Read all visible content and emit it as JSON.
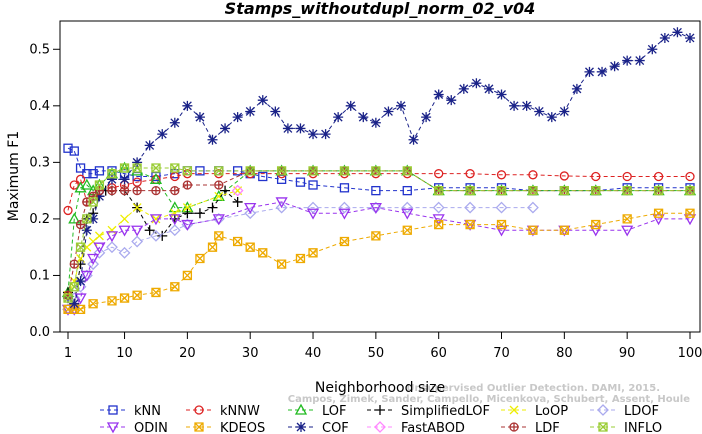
{
  "chart_data": {
    "type": "line",
    "title": "Stamps_withoutdupl_norm_02_v04",
    "xlabel": "Neighborhood size",
    "ylabel": "Maximum F1",
    "xlim": [
      1,
      100
    ],
    "ylim": [
      0,
      0.55
    ],
    "xticks": [
      1,
      10,
      20,
      30,
      40,
      50,
      60,
      70,
      80,
      90,
      100
    ],
    "yticks": [
      0.0,
      0.1,
      0.2,
      0.3,
      0.4,
      0.5
    ],
    "ytick_labels": [
      "0.0",
      "0.1",
      "0.2",
      "0.3",
      "0.4",
      "0.5"
    ],
    "grid": false,
    "legend_position": "bottom",
    "watermark_lines": [
      "Unsupervised Outlier Detection. DAMI, 2015.",
      "Campos, Zimek, Sander, Campello, Micenkova, Schubert, Assent, Houle"
    ],
    "series": [
      {
        "name": "kNN",
        "color": "#2233cc",
        "marker": "square",
        "x": [
          1,
          2,
          3,
          4,
          5,
          6,
          8,
          10,
          12,
          15,
          18,
          20,
          22,
          25,
          28,
          30,
          32,
          35,
          38,
          40,
          45,
          50,
          55,
          60,
          65,
          70,
          75,
          80,
          85,
          90,
          95,
          100
        ],
        "y": [
          0.325,
          0.32,
          0.29,
          0.28,
          0.28,
          0.285,
          0.285,
          0.28,
          0.275,
          0.275,
          0.28,
          0.285,
          0.285,
          0.285,
          0.285,
          0.28,
          0.275,
          0.27,
          0.265,
          0.26,
          0.255,
          0.25,
          0.25,
          0.255,
          0.255,
          0.255,
          0.25,
          0.25,
          0.25,
          0.255,
          0.255,
          0.255
        ]
      },
      {
        "name": "kNNW",
        "color": "#dd2222",
        "marker": "circle",
        "x": [
          1,
          2,
          3,
          4,
          5,
          6,
          8,
          10,
          12,
          15,
          18,
          20,
          25,
          30,
          35,
          40,
          45,
          50,
          55,
          60,
          65,
          70,
          75,
          80,
          85,
          90,
          95,
          100
        ],
        "y": [
          0.215,
          0.26,
          0.27,
          0.23,
          0.24,
          0.25,
          0.255,
          0.26,
          0.265,
          0.27,
          0.275,
          0.28,
          0.28,
          0.28,
          0.28,
          0.28,
          0.28,
          0.28,
          0.28,
          0.28,
          0.28,
          0.278,
          0.278,
          0.276,
          0.275,
          0.275,
          0.275,
          0.275
        ]
      },
      {
        "name": "LOF",
        "color": "#22bb22",
        "marker": "triangle-up",
        "x": [
          1,
          2,
          3,
          4,
          5,
          6,
          8,
          10,
          12,
          15,
          18,
          20,
          25,
          30,
          35,
          40,
          45,
          50,
          55,
          60,
          65,
          70,
          75,
          80,
          85,
          90,
          95,
          100
        ],
        "y": [
          0.07,
          0.2,
          0.255,
          0.26,
          0.25,
          0.26,
          0.28,
          0.29,
          0.285,
          0.27,
          0.22,
          0.22,
          0.24,
          0.285,
          0.285,
          0.285,
          0.285,
          0.285,
          0.285,
          0.25,
          0.25,
          0.25,
          0.25,
          0.25,
          0.25,
          0.25,
          0.25,
          0.25
        ]
      },
      {
        "name": "SimplifiedLOF",
        "color": "#000000",
        "marker": "plus",
        "x": [
          1,
          2,
          3,
          4,
          5,
          6,
          7,
          8,
          10,
          12,
          14,
          16,
          18,
          20,
          22,
          24,
          26,
          28
        ],
        "y": [
          0.07,
          0.05,
          0.12,
          0.2,
          0.21,
          0.24,
          0.25,
          0.25,
          0.25,
          0.22,
          0.18,
          0.17,
          0.2,
          0.21,
          0.21,
          0.22,
          0.25,
          0.23
        ]
      },
      {
        "name": "LoOP",
        "color": "#eeee00",
        "marker": "x",
        "x": [
          1,
          2,
          3,
          4,
          5,
          6,
          8,
          10,
          12,
          15,
          18,
          20,
          25,
          28
        ],
        "y": [
          0.065,
          0.09,
          0.13,
          0.15,
          0.16,
          0.17,
          0.18,
          0.2,
          0.22,
          0.2,
          0.21,
          0.22,
          0.24,
          0.25
        ]
      },
      {
        "name": "LDOF",
        "color": "#aaaaee",
        "marker": "diamond",
        "x": [
          1,
          2,
          3,
          4,
          5,
          6,
          8,
          10,
          12,
          15,
          18,
          20,
          25,
          30,
          35,
          40,
          45,
          50,
          55,
          60,
          65,
          70,
          75
        ],
        "y": [
          0.04,
          0.06,
          0.08,
          0.1,
          0.12,
          0.14,
          0.15,
          0.14,
          0.16,
          0.17,
          0.18,
          0.19,
          0.2,
          0.21,
          0.22,
          0.22,
          0.22,
          0.22,
          0.22,
          0.22,
          0.22,
          0.22,
          0.22
        ]
      },
      {
        "name": "ODIN",
        "color": "#9933ee",
        "marker": "triangle-down",
        "x": [
          1,
          2,
          3,
          4,
          5,
          6,
          8,
          10,
          12,
          15,
          18,
          20,
          25,
          30,
          35,
          40,
          45,
          50,
          55,
          60,
          65,
          70,
          75,
          80,
          85,
          90,
          95,
          100
        ],
        "y": [
          0.04,
          0.04,
          0.06,
          0.1,
          0.13,
          0.15,
          0.17,
          0.18,
          0.18,
          0.2,
          0.2,
          0.19,
          0.2,
          0.22,
          0.23,
          0.21,
          0.21,
          0.22,
          0.21,
          0.2,
          0.19,
          0.18,
          0.18,
          0.18,
          0.18,
          0.18,
          0.2,
          0.2
        ]
      },
      {
        "name": "KDEOS",
        "color": "#eeaa00",
        "marker": "square-x",
        "x": [
          1,
          2,
          3,
          5,
          8,
          10,
          12,
          15,
          18,
          20,
          22,
          24,
          25,
          28,
          30,
          32,
          35,
          38,
          40,
          45,
          50,
          55,
          60,
          65,
          70,
          75,
          80,
          85,
          90,
          95,
          100
        ],
        "y": [
          0.04,
          0.04,
          0.04,
          0.05,
          0.055,
          0.06,
          0.065,
          0.07,
          0.08,
          0.1,
          0.13,
          0.15,
          0.17,
          0.16,
          0.15,
          0.14,
          0.12,
          0.13,
          0.14,
          0.16,
          0.17,
          0.18,
          0.19,
          0.19,
          0.19,
          0.18,
          0.18,
          0.19,
          0.2,
          0.21,
          0.21
        ]
      },
      {
        "name": "COF",
        "color": "#1a2288",
        "marker": "star",
        "x": [
          1,
          2,
          3,
          4,
          5,
          6,
          8,
          10,
          12,
          14,
          16,
          18,
          20,
          22,
          24,
          26,
          28,
          30,
          32,
          34,
          36,
          38,
          40,
          42,
          44,
          46,
          48,
          50,
          52,
          54,
          56,
          58,
          60,
          62,
          64,
          66,
          68,
          70,
          72,
          74,
          76,
          78,
          80,
          82,
          84,
          86,
          88,
          90,
          92,
          94,
          96,
          98,
          100
        ],
        "y": [
          0.06,
          0.05,
          0.09,
          0.18,
          0.2,
          0.24,
          0.27,
          0.27,
          0.3,
          0.33,
          0.35,
          0.37,
          0.4,
          0.38,
          0.34,
          0.36,
          0.38,
          0.39,
          0.41,
          0.39,
          0.36,
          0.36,
          0.35,
          0.35,
          0.38,
          0.4,
          0.38,
          0.37,
          0.39,
          0.4,
          0.34,
          0.38,
          0.42,
          0.41,
          0.43,
          0.44,
          0.43,
          0.42,
          0.4,
          0.4,
          0.39,
          0.38,
          0.39,
          0.43,
          0.46,
          0.46,
          0.47,
          0.48,
          0.48,
          0.5,
          0.52,
          0.53,
          0.52
        ]
      },
      {
        "name": "FastABOD",
        "color": "#ff88ff",
        "marker": "diamond",
        "x": [
          28
        ],
        "y": [
          0.25
        ]
      },
      {
        "name": "LDF",
        "color": "#aa3333",
        "marker": "circle-plus",
        "x": [
          1,
          2,
          3,
          4,
          5,
          6,
          8,
          10,
          12,
          15,
          18,
          20,
          25,
          30,
          35,
          40,
          45,
          50,
          55,
          60,
          65,
          70,
          75,
          80,
          85,
          90,
          95,
          100
        ],
        "y": [
          0.065,
          0.12,
          0.19,
          0.23,
          0.24,
          0.25,
          0.25,
          0.25,
          0.25,
          0.25,
          0.25,
          0.26,
          0.26,
          0.285,
          0.285,
          0.285,
          0.285,
          0.285,
          0.285,
          0.25,
          0.25,
          0.25,
          0.25,
          0.25,
          0.25,
          0.25,
          0.25,
          0.25
        ]
      },
      {
        "name": "INFLO",
        "color": "#99cc33",
        "marker": "square-x",
        "x": [
          1,
          2,
          3,
          4,
          5,
          6,
          8,
          10,
          12,
          15,
          18,
          20,
          25,
          30,
          35,
          40,
          45,
          50,
          55,
          60,
          65,
          70,
          75,
          80,
          85,
          90,
          95,
          100
        ],
        "y": [
          0.06,
          0.08,
          0.15,
          0.2,
          0.23,
          0.26,
          0.28,
          0.29,
          0.29,
          0.29,
          0.29,
          0.285,
          0.285,
          0.285,
          0.285,
          0.285,
          0.285,
          0.285,
          0.285,
          0.25,
          0.25,
          0.25,
          0.25,
          0.25,
          0.25,
          0.25,
          0.25,
          0.25
        ]
      }
    ]
  }
}
